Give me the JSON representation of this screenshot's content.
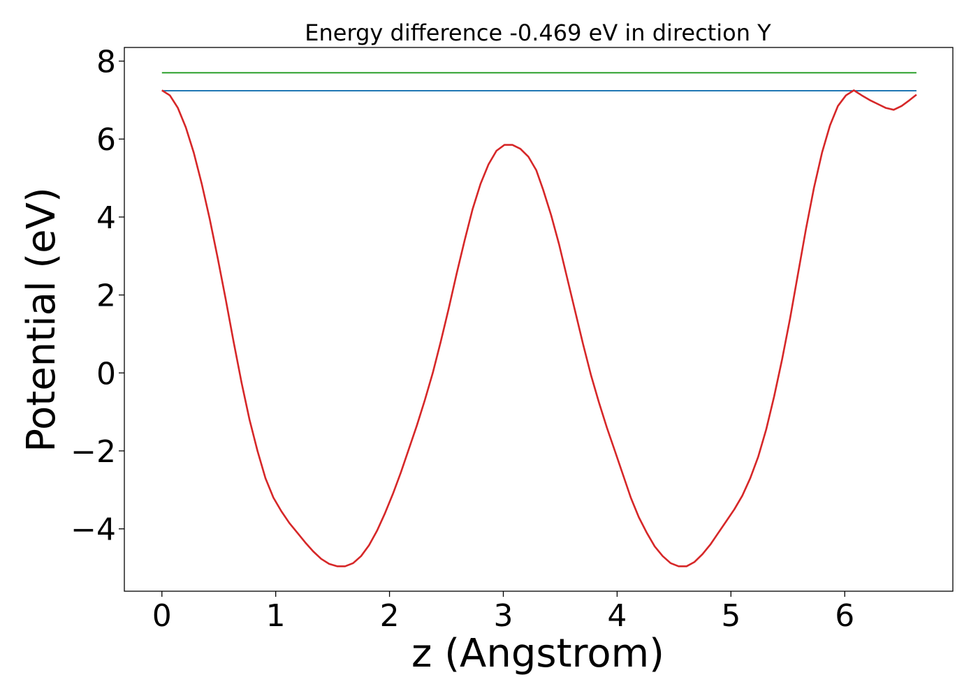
{
  "chart_data": {
    "type": "line",
    "title": "Energy difference -0.469 eV in direction Y",
    "xlabel": "z (Angstrom)",
    "ylabel": "Potential (eV)",
    "xlim": [
      -0.33,
      6.95
    ],
    "ylim": [
      -5.6,
      8.35
    ],
    "xticks": [
      0,
      1,
      2,
      3,
      4,
      5,
      6
    ],
    "xtick_labels": [
      "0",
      "1",
      "2",
      "3",
      "4",
      "5",
      "6"
    ],
    "yticks": [
      -4,
      -2,
      0,
      2,
      4,
      6,
      8
    ],
    "ytick_labels": [
      "−4",
      "−2",
      "0",
      "2",
      "4",
      "6",
      "8"
    ],
    "grid": false,
    "legend": "none",
    "series": [
      {
        "color": "#2ca02c",
        "x": [
          0,
          6.63
        ],
        "y": [
          7.7,
          7.7
        ]
      },
      {
        "color": "#1f77b4",
        "x": [
          0,
          6.63
        ],
        "y": [
          7.24,
          7.24
        ]
      },
      {
        "color": "#d62728",
        "x": [
          0,
          0.07,
          0.14,
          0.21,
          0.28,
          0.35,
          0.42,
          0.49,
          0.56,
          0.63,
          0.7,
          0.77,
          0.84,
          0.91,
          0.98,
          1.05,
          1.12,
          1.19,
          1.26,
          1.33,
          1.4,
          1.47,
          1.54,
          1.61,
          1.68,
          1.75,
          1.82,
          1.89,
          1.96,
          2.03,
          2.1,
          2.17,
          2.24,
          2.31,
          2.38,
          2.45,
          2.52,
          2.59,
          2.66,
          2.73,
          2.8,
          2.87,
          2.94,
          3.01,
          3.08,
          3.15,
          3.22,
          3.29,
          3.35,
          3.42,
          3.49,
          3.56,
          3.63,
          3.7,
          3.77,
          3.84,
          3.91,
          3.98,
          4.05,
          4.12,
          4.19,
          4.26,
          4.33,
          4.4,
          4.47,
          4.54,
          4.61,
          4.68,
          4.75,
          4.82,
          4.89,
          4.96,
          5.03,
          5.1,
          5.17,
          5.24,
          5.31,
          5.38,
          5.45,
          5.52,
          5.59,
          5.66,
          5.73,
          5.8,
          5.87,
          5.94,
          6.01,
          6.08,
          6.15,
          6.22,
          6.29,
          6.36,
          6.43,
          6.5,
          6.57,
          6.63
        ],
        "y": [
          7.25,
          7.12,
          6.8,
          6.3,
          5.65,
          4.85,
          3.95,
          2.95,
          1.9,
          0.8,
          -0.25,
          -1.2,
          -2.0,
          -2.7,
          -3.2,
          -3.55,
          -3.85,
          -4.1,
          -4.35,
          -4.58,
          -4.77,
          -4.9,
          -4.96,
          -4.96,
          -4.88,
          -4.7,
          -4.42,
          -4.05,
          -3.6,
          -3.1,
          -2.55,
          -1.95,
          -1.35,
          -0.7,
          0.0,
          0.8,
          1.65,
          2.55,
          3.4,
          4.2,
          4.85,
          5.35,
          5.7,
          5.85,
          5.85,
          5.75,
          5.55,
          5.2,
          4.7,
          4.05,
          3.3,
          2.45,
          1.6,
          0.75,
          -0.05,
          -0.75,
          -1.4,
          -2.0,
          -2.6,
          -3.2,
          -3.7,
          -4.1,
          -4.45,
          -4.7,
          -4.88,
          -4.96,
          -4.96,
          -4.85,
          -4.65,
          -4.4,
          -4.1,
          -3.8,
          -3.5,
          -3.15,
          -2.7,
          -2.15,
          -1.45,
          -0.6,
          0.35,
          1.4,
          2.55,
          3.7,
          4.75,
          5.65,
          6.35,
          6.85,
          7.12,
          7.25,
          7.12,
          7.0,
          6.9,
          6.8,
          6.75,
          6.85,
          7.0,
          7.14
        ]
      }
    ]
  }
}
